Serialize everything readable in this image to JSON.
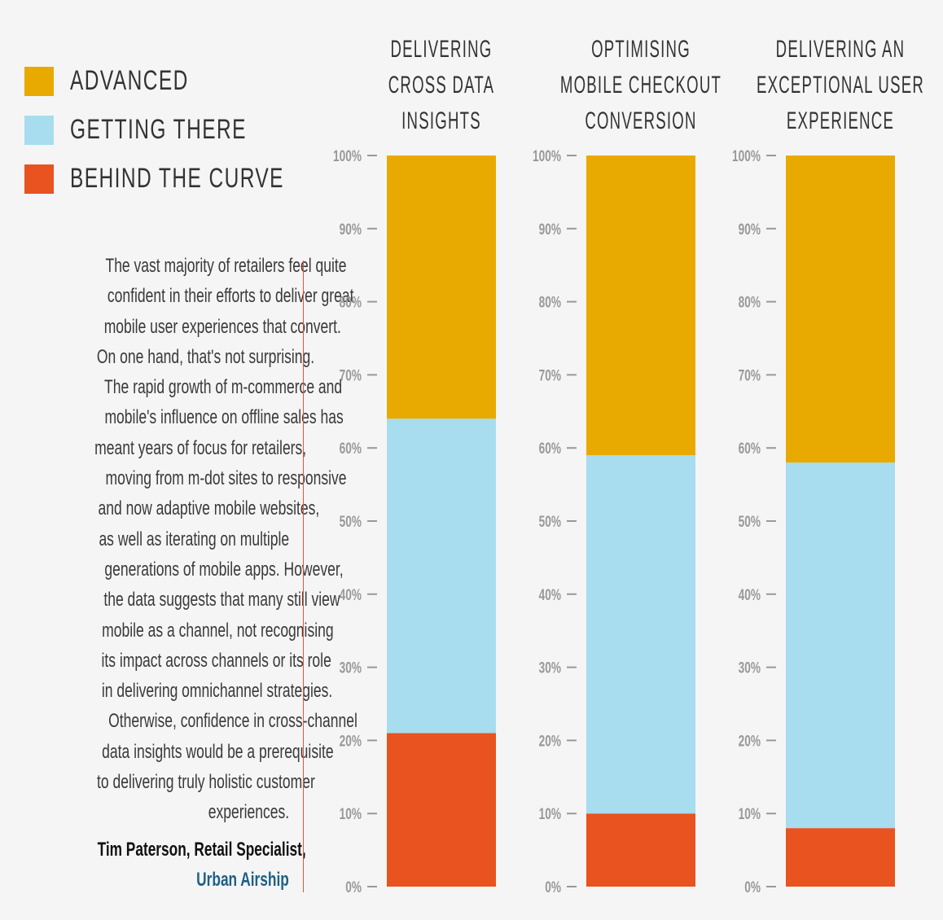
{
  "legend": {
    "items": [
      {
        "label": "ADVANCED",
        "color": "#e8aa00"
      },
      {
        "label": "GETTING THERE",
        "color": "#a8dcef"
      },
      {
        "label": "BEHIND THE CURVE",
        "color": "#e8531f"
      }
    ]
  },
  "quote": {
    "lines": [
      "The vast majority of retailers feel quite",
      "confident in their efforts to deliver great",
      "mobile user experiences that convert.",
      "On one hand, that's not surprising.",
      "The rapid growth of m-commerce and",
      "mobile's influence on offline sales has",
      "meant years of focus for retailers,",
      "moving from m-dot sites to responsive",
      "and now adaptive mobile websites,",
      "as well as iterating on multiple",
      "generations of mobile apps. However,",
      "the data suggests that many still view",
      "mobile as a channel, not recognising",
      "its impact across channels or its role",
      "in delivering omnichannel strategies.",
      "Otherwise, confidence in cross-channel",
      "data insights would be a prerequisite",
      "to delivering truly holistic customer",
      "experiences."
    ],
    "author": "Tim Paterson, Retail Specialist,",
    "company": "Urban Airship",
    "author_color": "#111111",
    "company_color": "#1f5f87",
    "divider_color": "#e8533a"
  },
  "chart_data": {
    "type": "bar",
    "stacked": true,
    "categories": [
      "DELIVERING CROSS DATA INSIGHTS",
      "OPTIMISING MOBILE CHECKOUT CONVERSION",
      "DELIVERING AN EXCEPTIONAL USER EXPERIENCE"
    ],
    "category_lines": [
      [
        "DELIVERING",
        "CROSS DATA",
        "INSIGHTS"
      ],
      [
        "OPTIMISING",
        "MOBILE CHECKOUT",
        "CONVERSION"
      ],
      [
        "DELIVERING AN",
        "EXCEPTIONAL USER",
        "EXPERIENCE"
      ]
    ],
    "series": [
      {
        "name": "BEHIND THE CURVE",
        "values": [
          21,
          10,
          8
        ],
        "color": "#e8531f"
      },
      {
        "name": "GETTING THERE",
        "values": [
          43,
          49,
          50
        ],
        "color": "#a8dcef"
      },
      {
        "name": "ADVANCED",
        "values": [
          36,
          41,
          42
        ],
        "color": "#e8aa00"
      }
    ],
    "ylim": [
      0,
      100
    ],
    "yticks": [
      "0%",
      "10%",
      "20%",
      "30%",
      "40%",
      "50%",
      "60%",
      "70%",
      "80%",
      "90%",
      "100%"
    ],
    "xlabel": "",
    "ylabel": "",
    "legend": "top-left",
    "grid": false
  }
}
